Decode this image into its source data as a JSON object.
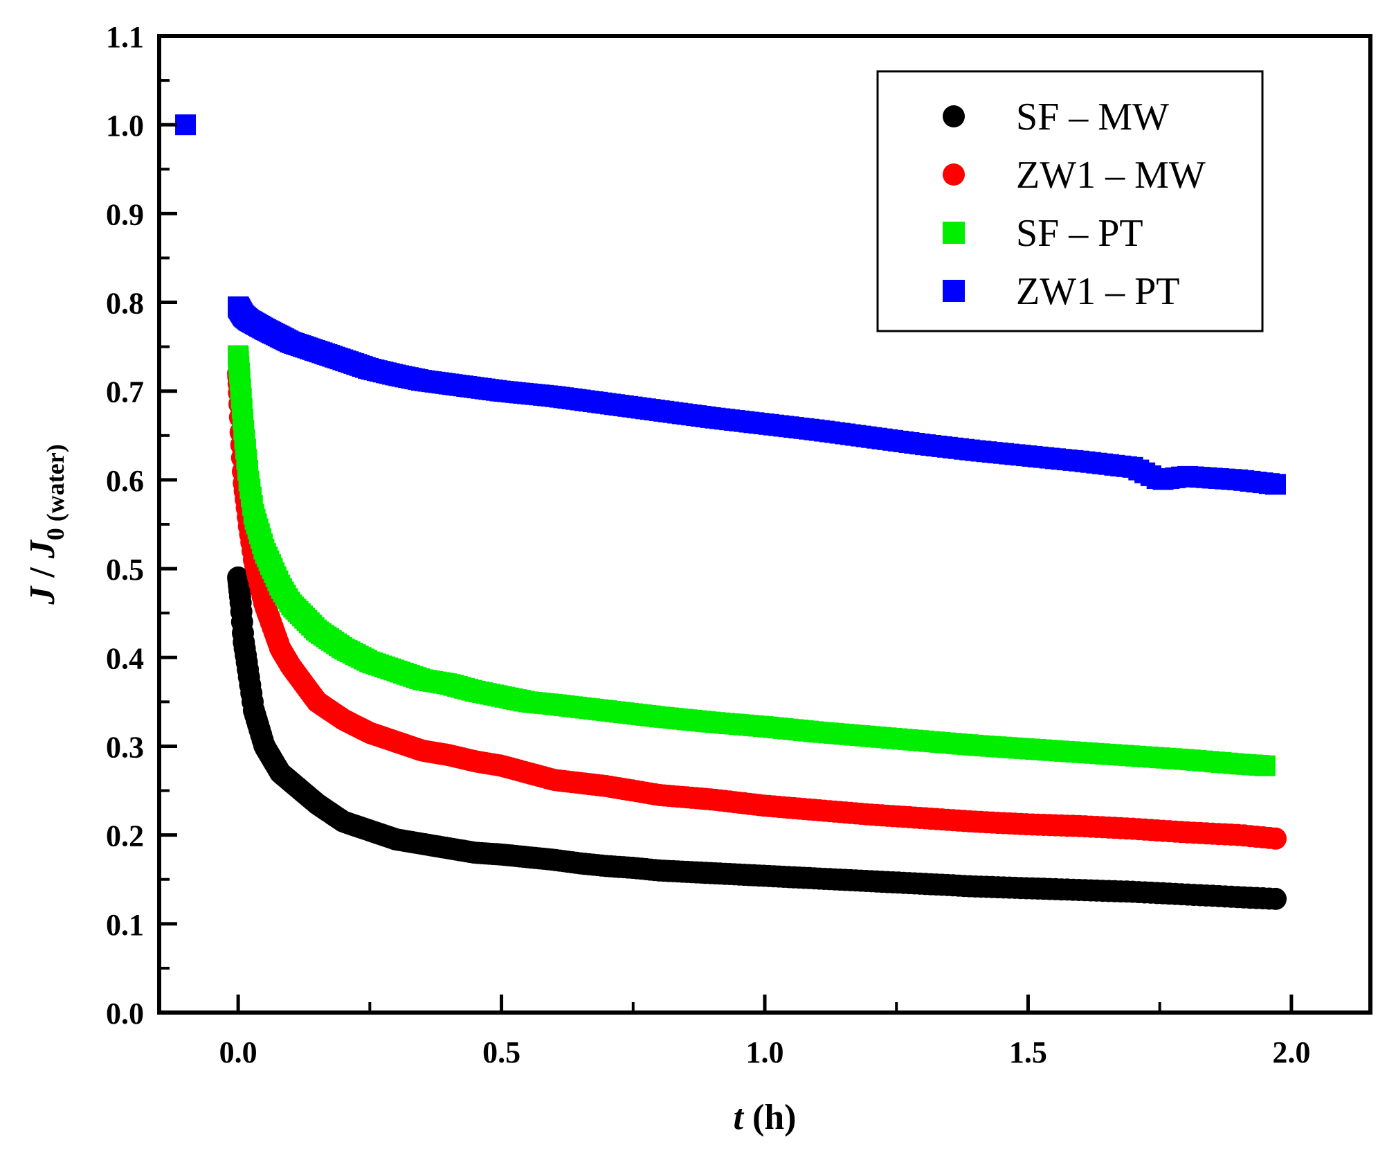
{
  "chart_data": {
    "type": "scatter",
    "xlabel": {
      "var": "t",
      "unit": " (h)"
    },
    "ylabel": {
      "j": "J",
      "sep": " / ",
      "j0": "J",
      "sub": "0 (water)"
    },
    "xlim": [
      -0.15,
      2.15
    ],
    "ylim": [
      0.0,
      1.1
    ],
    "x_ticks": [
      0.0,
      0.5,
      1.0,
      1.5,
      2.0
    ],
    "x_tick_labels": [
      "0.0",
      "0.5",
      "1.0",
      "1.5",
      "2.0"
    ],
    "y_ticks": [
      0.0,
      0.1,
      0.2,
      0.3,
      0.4,
      0.5,
      0.6,
      0.7,
      0.8,
      0.9,
      1.0,
      1.1
    ],
    "y_tick_labels": [
      "0.0",
      "0.1",
      "0.2",
      "0.3",
      "0.4",
      "0.5",
      "0.6",
      "0.7",
      "0.8",
      "0.9",
      "1.0",
      "1.1"
    ],
    "legend_position": "top-right",
    "series": [
      {
        "name": "SF – MW",
        "marker": "circle",
        "color": "#000000",
        "x": [
          0.0,
          0.005,
          0.01,
          0.02,
          0.03,
          0.05,
          0.08,
          0.1,
          0.15,
          0.2,
          0.25,
          0.3,
          0.35,
          0.4,
          0.45,
          0.5,
          0.55,
          0.6,
          0.65,
          0.7,
          0.75,
          0.8,
          0.9,
          1.0,
          1.1,
          1.2,
          1.3,
          1.4,
          1.5,
          1.6,
          1.7,
          1.8,
          1.9,
          1.97
        ],
        "y": [
          0.49,
          0.46,
          0.42,
          0.38,
          0.34,
          0.3,
          0.27,
          0.26,
          0.235,
          0.215,
          0.205,
          0.195,
          0.19,
          0.185,
          0.18,
          0.178,
          0.175,
          0.172,
          0.168,
          0.165,
          0.163,
          0.16,
          0.157,
          0.154,
          0.151,
          0.148,
          0.145,
          0.142,
          0.14,
          0.138,
          0.136,
          0.133,
          0.13,
          0.128
        ]
      },
      {
        "name": "ZW1 – MW",
        "marker": "circle",
        "color": "#ff0000",
        "x": [
          0.0,
          0.005,
          0.01,
          0.02,
          0.03,
          0.05,
          0.08,
          0.1,
          0.15,
          0.2,
          0.25,
          0.3,
          0.35,
          0.4,
          0.45,
          0.5,
          0.55,
          0.6,
          0.7,
          0.8,
          0.9,
          1.0,
          1.1,
          1.2,
          1.3,
          1.4,
          1.5,
          1.6,
          1.7,
          1.8,
          1.9,
          1.97
        ],
        "y": [
          0.72,
          0.65,
          0.6,
          0.55,
          0.51,
          0.46,
          0.41,
          0.39,
          0.35,
          0.33,
          0.315,
          0.305,
          0.295,
          0.29,
          0.283,
          0.278,
          0.27,
          0.262,
          0.255,
          0.245,
          0.24,
          0.233,
          0.228,
          0.223,
          0.219,
          0.215,
          0.212,
          0.21,
          0.207,
          0.203,
          0.2,
          0.196
        ]
      },
      {
        "name": "SF – PT",
        "marker": "square",
        "color": "#00ee00",
        "x": [
          0.0,
          0.005,
          0.01,
          0.02,
          0.03,
          0.05,
          0.08,
          0.1,
          0.15,
          0.2,
          0.25,
          0.3,
          0.35,
          0.4,
          0.45,
          0.5,
          0.55,
          0.6,
          0.7,
          0.8,
          0.9,
          1.0,
          1.1,
          1.2,
          1.3,
          1.4,
          1.5,
          1.6,
          1.7,
          1.8,
          1.9,
          1.95
        ],
        "y": [
          0.74,
          0.7,
          0.66,
          0.6,
          0.56,
          0.52,
          0.48,
          0.46,
          0.43,
          0.41,
          0.395,
          0.385,
          0.375,
          0.37,
          0.362,
          0.356,
          0.35,
          0.347,
          0.34,
          0.333,
          0.327,
          0.322,
          0.316,
          0.311,
          0.306,
          0.301,
          0.297,
          0.293,
          0.289,
          0.285,
          0.28,
          0.278
        ]
      },
      {
        "name": "ZW1 – PT",
        "marker": "square",
        "color": "#0000ff",
        "x": [
          0.0,
          0.01,
          0.02,
          0.05,
          0.1,
          0.15,
          0.2,
          0.25,
          0.3,
          0.35,
          0.4,
          0.45,
          0.5,
          0.55,
          0.6,
          0.7,
          0.8,
          0.9,
          1.0,
          1.1,
          1.2,
          1.3,
          1.4,
          1.5,
          1.6,
          1.7,
          1.75,
          1.8,
          1.9,
          1.97
        ],
        "y": [
          0.795,
          0.785,
          0.78,
          0.77,
          0.755,
          0.745,
          0.735,
          0.725,
          0.718,
          0.712,
          0.708,
          0.704,
          0.7,
          0.697,
          0.694,
          0.686,
          0.678,
          0.67,
          0.663,
          0.656,
          0.648,
          0.64,
          0.633,
          0.627,
          0.621,
          0.614,
          0.6,
          0.604,
          0.6,
          0.595
        ]
      }
    ],
    "initial_point": {
      "x": -0.1,
      "y": 1.0,
      "color": "#0000ff"
    }
  }
}
